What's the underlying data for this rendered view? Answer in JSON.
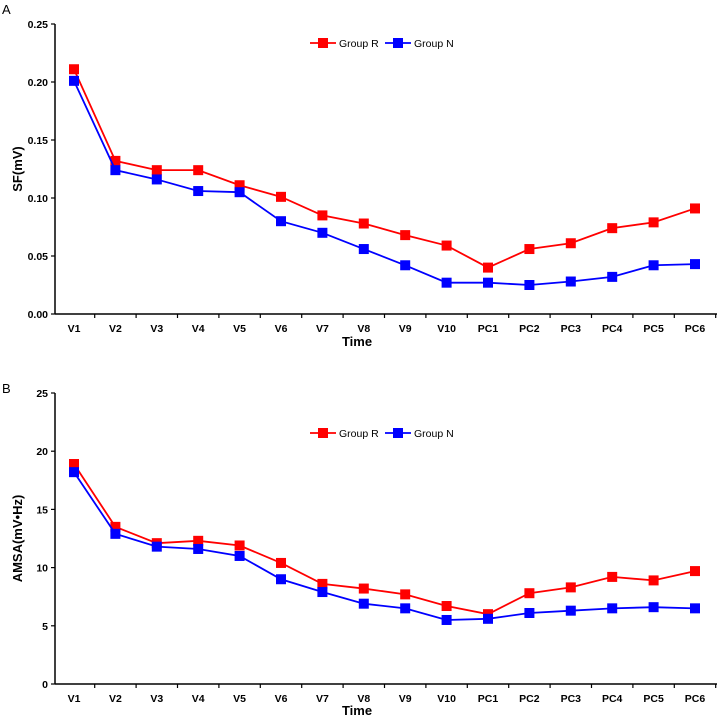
{
  "chart_data": [
    {
      "type": "line",
      "panel_label": "A",
      "xlabel": "Time",
      "ylabel": "SF(mV)",
      "ylim": [
        0,
        0.25
      ],
      "yticks": [
        "0.00",
        "0.05",
        "0.10",
        "0.15",
        "0.20",
        "0.25"
      ],
      "ytick_values": [
        0,
        0.05,
        0.1,
        0.15,
        0.2,
        0.25
      ],
      "categories": [
        "V1",
        "V2",
        "V3",
        "V4",
        "V5",
        "V6",
        "V7",
        "V8",
        "V9",
        "V10",
        "PC1",
        "PC2",
        "PC3",
        "PC4",
        "PC5",
        "PC6"
      ],
      "legend_position": "top-center",
      "grid": false,
      "series": [
        {
          "name": "Group R",
          "color": "#ff0000",
          "values": [
            0.211,
            0.132,
            0.124,
            0.124,
            0.111,
            0.101,
            0.085,
            0.078,
            0.068,
            0.059,
            0.04,
            0.056,
            0.061,
            0.074,
            0.079,
            0.091
          ]
        },
        {
          "name": "Group N",
          "color": "#0000ff",
          "values": [
            0.201,
            0.124,
            0.116,
            0.106,
            0.105,
            0.08,
            0.07,
            0.056,
            0.042,
            0.027,
            0.027,
            0.025,
            0.028,
            0.032,
            0.042,
            0.043
          ]
        }
      ]
    },
    {
      "type": "line",
      "panel_label": "B",
      "xlabel": "Time",
      "ylabel": "AMSA(mV•Hz)",
      "ylim": [
        0,
        25
      ],
      "yticks": [
        "0",
        "5",
        "10",
        "15",
        "20",
        "25"
      ],
      "ytick_values": [
        0,
        5,
        10,
        15,
        20,
        25
      ],
      "categories": [
        "V1",
        "V2",
        "V3",
        "V4",
        "V5",
        "V6",
        "V7",
        "V8",
        "V9",
        "V10",
        "PC1",
        "PC2",
        "PC3",
        "PC4",
        "PC5",
        "PC6"
      ],
      "legend_position": "top-center",
      "grid": false,
      "series": [
        {
          "name": "Group R",
          "color": "#ff0000",
          "values": [
            18.9,
            13.5,
            12.1,
            12.3,
            11.9,
            10.4,
            8.6,
            8.2,
            7.7,
            6.7,
            6.0,
            7.8,
            8.3,
            9.2,
            8.9,
            9.7
          ]
        },
        {
          "name": "Group N",
          "color": "#0000ff",
          "values": [
            18.2,
            12.9,
            11.8,
            11.6,
            11.0,
            9.0,
            7.9,
            6.9,
            6.5,
            5.5,
            5.6,
            6.1,
            6.3,
            6.5,
            6.6,
            6.5
          ]
        }
      ]
    }
  ]
}
